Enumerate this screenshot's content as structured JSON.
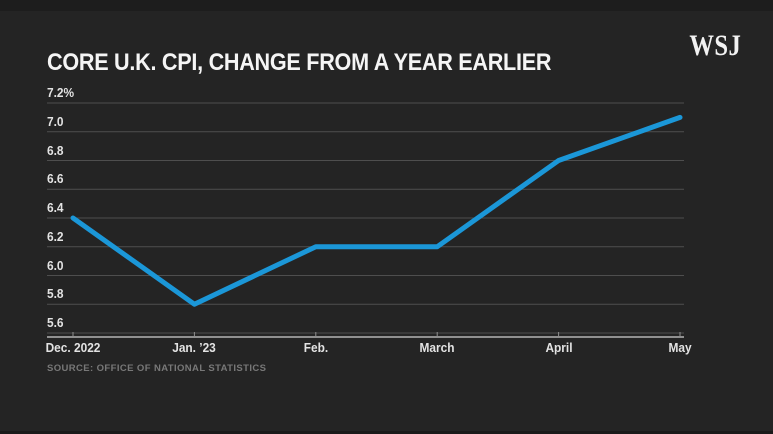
{
  "header": {
    "title": "CORE U.K. CPI, CHANGE FROM A YEAR EARLIER",
    "logo": "WSJ"
  },
  "chart_data": {
    "type": "line",
    "title": "CORE U.K. CPI, CHANGE FROM A YEAR EARLIER",
    "categories": [
      "Dec. 2022",
      "Jan. ’23",
      "Feb.",
      "March",
      "April",
      "May"
    ],
    "series": [
      {
        "name": "Core U.K. CPI change from a year earlier (%)",
        "values": [
          6.4,
          5.8,
          6.2,
          6.2,
          6.8,
          7.1
        ]
      }
    ],
    "ylim": [
      5.6,
      7.2
    ],
    "yticks": [
      {
        "value": 7.2,
        "label": "7.2%"
      },
      {
        "value": 7.0,
        "label": "7.0"
      },
      {
        "value": 6.8,
        "label": "6.8"
      },
      {
        "value": 6.6,
        "label": "6.6"
      },
      {
        "value": 6.4,
        "label": "6.4"
      },
      {
        "value": 6.2,
        "label": "6.2"
      },
      {
        "value": 6.0,
        "label": "6.0"
      },
      {
        "value": 5.8,
        "label": "5.8"
      },
      {
        "value": 5.6,
        "label": "5.6"
      }
    ],
    "grid": true,
    "legend": "none",
    "line_color": "#1b97d8",
    "grid_color": "#4e4e4e",
    "axis_color": "#909090"
  },
  "source": {
    "text": "SOURCE: OFFICE OF NATIONAL STATISTICS"
  }
}
